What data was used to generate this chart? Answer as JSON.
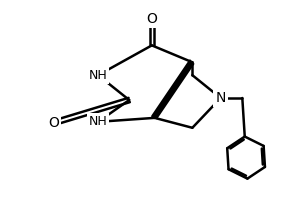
{
  "background_color": "#ffffff",
  "line_color": "#000000",
  "line_width": 1.8,
  "font_size": 10,
  "fig_width": 2.98,
  "fig_height": 1.98,
  "dpi": 100,
  "xlim": [
    0,
    10
  ],
  "ylim": [
    0,
    7
  ]
}
